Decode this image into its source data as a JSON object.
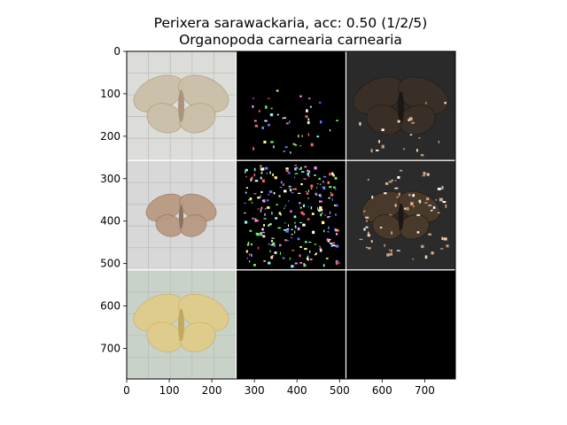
{
  "title_line1": "Perixera sarawackaria, acc: 0.50 (1/2/5)",
  "title_line2": "Organopoda carnearia carnearia",
  "chart_data": {
    "type": "image_grid",
    "rows": 3,
    "cols": 3,
    "tile_size": 256,
    "separator_color": "#ffffff",
    "xlim": [
      0,
      772
    ],
    "ylim": [
      772,
      0
    ],
    "xticks": [
      0,
      100,
      200,
      300,
      400,
      500,
      600,
      700
    ],
    "yticks": [
      0,
      100,
      200,
      300,
      400,
      500,
      600,
      700
    ],
    "cells": [
      {
        "row": 0,
        "col": 0,
        "content": "moth-photo",
        "bg": "#dcdcd8",
        "moth": "#cbbfa8",
        "moth_dark": "#a8957a",
        "grid": true
      },
      {
        "row": 0,
        "col": 1,
        "content": "saliency-sparse",
        "bg": "#000000"
      },
      {
        "row": 0,
        "col": 2,
        "content": "masked-photo",
        "bg": "#2a2a2a",
        "moth": "#3a3026"
      },
      {
        "row": 1,
        "col": 0,
        "content": "moth-photo",
        "bg": "#d8d8d8",
        "moth": "#b89a82",
        "moth_dark": "#8f7160",
        "grid": true
      },
      {
        "row": 1,
        "col": 1,
        "content": "saliency-dense",
        "bg": "#000000"
      },
      {
        "row": 1,
        "col": 2,
        "content": "masked-photo",
        "bg": "#2b2b2b",
        "moth": "#4a3a2a"
      },
      {
        "row": 2,
        "col": 0,
        "content": "moth-photo",
        "bg": "#c9d2c8",
        "moth": "#e0cc8a",
        "moth_dark": "#c4a860",
        "grid": true
      },
      {
        "row": 2,
        "col": 1,
        "content": "blank",
        "bg": "#000000"
      },
      {
        "row": 2,
        "col": 2,
        "content": "blank",
        "bg": "#000000"
      }
    ]
  }
}
